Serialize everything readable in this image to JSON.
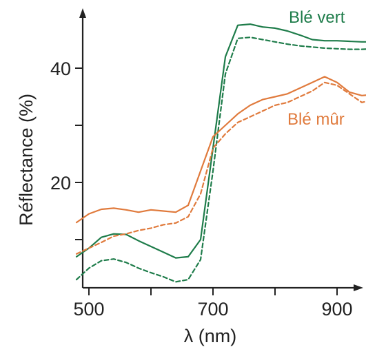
{
  "chart_data": {
    "type": "line",
    "xlabel": "λ (nm)",
    "ylabel": "Réflectance (%)",
    "xlim": [
      400,
      1000
    ],
    "ylim": [
      0,
      48
    ],
    "x_ticks": [
      {
        "value": 500,
        "label": "500"
      },
      {
        "value": 600,
        "label": ""
      },
      {
        "value": 700,
        "label": "700"
      },
      {
        "value": 800,
        "label": ""
      },
      {
        "value": 900,
        "label": "900"
      }
    ],
    "y_ticks": [
      {
        "value": 10,
        "label": ""
      },
      {
        "value": 20,
        "label": "20"
      },
      {
        "value": 30,
        "label": ""
      },
      {
        "value": 40,
        "label": "40"
      }
    ],
    "series": [
      {
        "name": "Blé vert",
        "color": "#1e7c4a",
        "style": "solid",
        "x": [
          480,
          500,
          520,
          540,
          560,
          580,
          600,
          620,
          640,
          660,
          680,
          700,
          720,
          740,
          760,
          780,
          800,
          820,
          840,
          860,
          880,
          900,
          920,
          940,
          960,
          980
        ],
        "y": [
          7.0,
          8.5,
          10.4,
          11.0,
          10.9,
          9.8,
          8.8,
          7.8,
          6.8,
          7.0,
          10.0,
          26.0,
          42.0,
          47.5,
          47.7,
          47.2,
          47.0,
          46.5,
          45.8,
          45.0,
          44.8,
          44.8,
          44.7,
          44.6,
          44.6,
          44.7
        ]
      },
      {
        "name": "Blé vert",
        "color": "#1e7c4a",
        "style": "dashed",
        "x": [
          480,
          500,
          520,
          540,
          560,
          580,
          600,
          620,
          640,
          660,
          680,
          700,
          720,
          740,
          760,
          780,
          800,
          820,
          840,
          860,
          880,
          900,
          920,
          940,
          960,
          980
        ],
        "y": [
          3.0,
          5.0,
          6.3,
          6.6,
          6.0,
          5.0,
          4.2,
          3.5,
          2.6,
          3.0,
          6.5,
          22.0,
          39.0,
          45.2,
          45.4,
          45.0,
          44.6,
          44.2,
          43.9,
          43.7,
          43.5,
          43.4,
          43.3,
          43.3,
          43.4,
          43.5
        ]
      },
      {
        "name": "Blé mûr",
        "color": "#e07a3c",
        "style": "solid",
        "x": [
          480,
          500,
          520,
          540,
          560,
          580,
          600,
          620,
          640,
          660,
          680,
          700,
          720,
          740,
          760,
          780,
          800,
          820,
          840,
          860,
          880,
          900,
          920,
          940,
          960,
          980
        ],
        "y": [
          13.0,
          14.5,
          15.3,
          15.5,
          15.2,
          14.8,
          15.2,
          15.0,
          14.8,
          16.0,
          22.0,
          28.0,
          30.0,
          32.0,
          33.5,
          34.5,
          35.0,
          35.5,
          36.5,
          37.5,
          38.5,
          37.5,
          35.8,
          35.2,
          35.4,
          35.6
        ]
      },
      {
        "name": "Blé mûr",
        "color": "#e07a3c",
        "style": "dashed",
        "x": [
          480,
          500,
          520,
          540,
          560,
          580,
          600,
          620,
          640,
          660,
          680,
          700,
          720,
          740,
          760,
          780,
          800,
          820,
          840,
          860,
          880,
          900,
          920,
          940,
          960,
          980
        ],
        "y": [
          7.5,
          8.5,
          9.5,
          10.6,
          11.0,
          11.6,
          12.0,
          12.6,
          12.9,
          14.0,
          18.0,
          26.0,
          28.5,
          30.5,
          31.5,
          32.5,
          33.5,
          34.0,
          35.0,
          36.0,
          37.5,
          37.0,
          35.5,
          34.0,
          34.5,
          35.0
        ]
      }
    ],
    "legend": [
      {
        "label": "Blé vert",
        "color": "#1e7c4a"
      },
      {
        "label": "Blé mûr",
        "color": "#e07a3c"
      }
    ],
    "grid": false,
    "axis_color": "#222222"
  }
}
